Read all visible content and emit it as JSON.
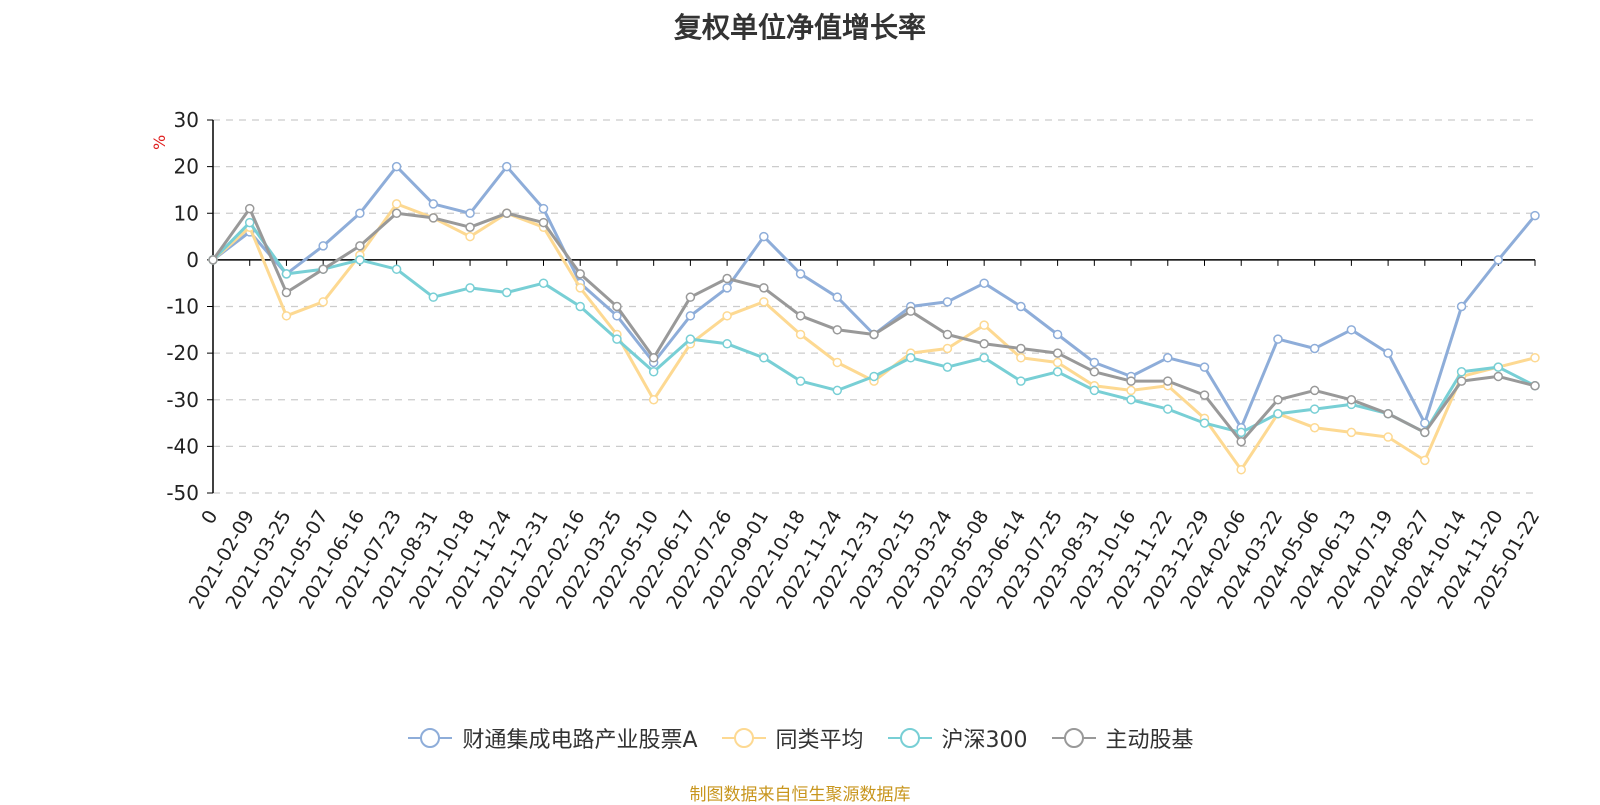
{
  "chart_data": {
    "type": "line",
    "title": "复权单位净值增长率",
    "ylabel": "%",
    "ylim": [
      -50,
      30
    ],
    "yticks": [
      30,
      20,
      10,
      0,
      -10,
      -20,
      -30,
      -40,
      -50
    ],
    "x_labels": [
      "0",
      "2021-02-09",
      "2021-03-25",
      "2021-05-07",
      "2021-06-16",
      "2021-07-23",
      "2021-08-31",
      "2021-10-18",
      "2021-11-24",
      "2021-12-31",
      "2022-02-16",
      "2022-03-25",
      "2022-05-10",
      "2022-06-17",
      "2022-07-26",
      "2022-09-01",
      "2022-10-18",
      "2022-11-24",
      "2022-12-31",
      "2023-02-15",
      "2023-03-24",
      "2023-05-08",
      "2023-06-14",
      "2023-07-25",
      "2023-08-31",
      "2023-10-16",
      "2023-11-22",
      "2023-12-29",
      "2024-02-06",
      "2024-03-22",
      "2024-05-06",
      "2024-06-13",
      "2024-07-19",
      "2024-08-27",
      "2024-10-14",
      "2024-11-20",
      "2025-01-22"
    ],
    "grid": true,
    "legend_position": "bottom",
    "series": [
      {
        "name": "财通集成电路产业股票A",
        "color": "#8eadd9",
        "x": [
          0,
          1,
          2,
          3,
          4,
          5,
          6,
          7,
          8,
          9,
          10,
          11,
          12,
          13,
          14,
          15,
          16,
          17,
          18,
          19,
          20,
          21,
          22,
          23,
          24,
          25,
          26,
          27,
          28,
          29,
          30,
          31,
          32,
          33,
          34,
          35,
          36
        ],
        "values": [
          0,
          6,
          -3,
          3,
          10,
          20,
          12,
          10,
          20,
          11,
          -5,
          -12,
          -22,
          -12,
          -6,
          5,
          -3,
          -8,
          -16,
          -10,
          -9,
          -5,
          -10,
          -16,
          -22,
          -25,
          -21,
          -23,
          -36,
          -17,
          -19,
          -15,
          -20,
          -35,
          -10,
          0,
          9.5
        ]
      },
      {
        "name": "同类平均",
        "color": "#fdd992",
        "x": [
          0,
          1,
          2,
          3,
          4,
          5,
          6,
          7,
          8,
          9,
          10,
          11,
          12,
          13,
          14,
          15,
          16,
          17,
          18,
          19,
          20,
          21,
          22,
          23,
          24,
          25,
          26,
          27,
          28,
          29,
          30,
          31,
          32,
          33,
          34,
          35,
          36
        ],
        "values": [
          0,
          7,
          -12,
          -9,
          1,
          12,
          9,
          5,
          10,
          7,
          -6,
          -16,
          -30,
          -18,
          -12,
          -9,
          -16,
          -22,
          -26,
          -20,
          -19,
          -14,
          -21,
          -22,
          -27,
          -28,
          -27,
          -34,
          -45,
          -33,
          -36,
          -37,
          -38,
          -43,
          -25,
          -23,
          -21
        ]
      },
      {
        "name": "沪深300",
        "color": "#78cfd5",
        "x": [
          0,
          1,
          2,
          3,
          4,
          5,
          6,
          7,
          8,
          9,
          10,
          11,
          12,
          13,
          14,
          15,
          16,
          17,
          18,
          19,
          20,
          21,
          22,
          23,
          24,
          25,
          26,
          27,
          28,
          29,
          30,
          31,
          32,
          33,
          34,
          35,
          36
        ],
        "values": [
          0,
          8,
          -3,
          -2,
          0,
          -2,
          -8,
          -6,
          -7,
          -5,
          -10,
          -17,
          -24,
          -17,
          -18,
          -21,
          -26,
          -28,
          -25,
          -21,
          -23,
          -21,
          -26,
          -24,
          -28,
          -30,
          -32,
          -35,
          -37,
          -33,
          -32,
          -31,
          -33,
          -37,
          -24,
          -23,
          -27
        ]
      },
      {
        "name": "主动股基",
        "color": "#999999",
        "x": [
          0,
          1,
          2,
          3,
          4,
          5,
          6,
          7,
          8,
          9,
          10,
          11,
          12,
          13,
          14,
          15,
          16,
          17,
          18,
          19,
          20,
          21,
          22,
          23,
          24,
          25,
          26,
          27,
          28,
          29,
          30,
          31,
          32,
          33,
          34,
          35,
          36
        ],
        "values": [
          0,
          11,
          -7,
          -2,
          3,
          10,
          9,
          7,
          10,
          8,
          -3,
          -10,
          -21,
          -8,
          -4,
          -6,
          -12,
          -15,
          -16,
          -11,
          -16,
          -18,
          -19,
          -20,
          -24,
          -26,
          -26,
          -29,
          -39,
          -30,
          -28,
          -30,
          -33,
          -37,
          -26,
          -25,
          -27
        ]
      }
    ]
  },
  "legend": {
    "items": [
      "财通集成电路产业股票A",
      "同类平均",
      "沪深300",
      "主动股基"
    ]
  },
  "footer": "制图数据来自恒生聚源数据库",
  "colors": {
    "unit_label": "#e02020",
    "grid": "#cccccc",
    "axis": "#000000",
    "footer": "#c8961e"
  }
}
